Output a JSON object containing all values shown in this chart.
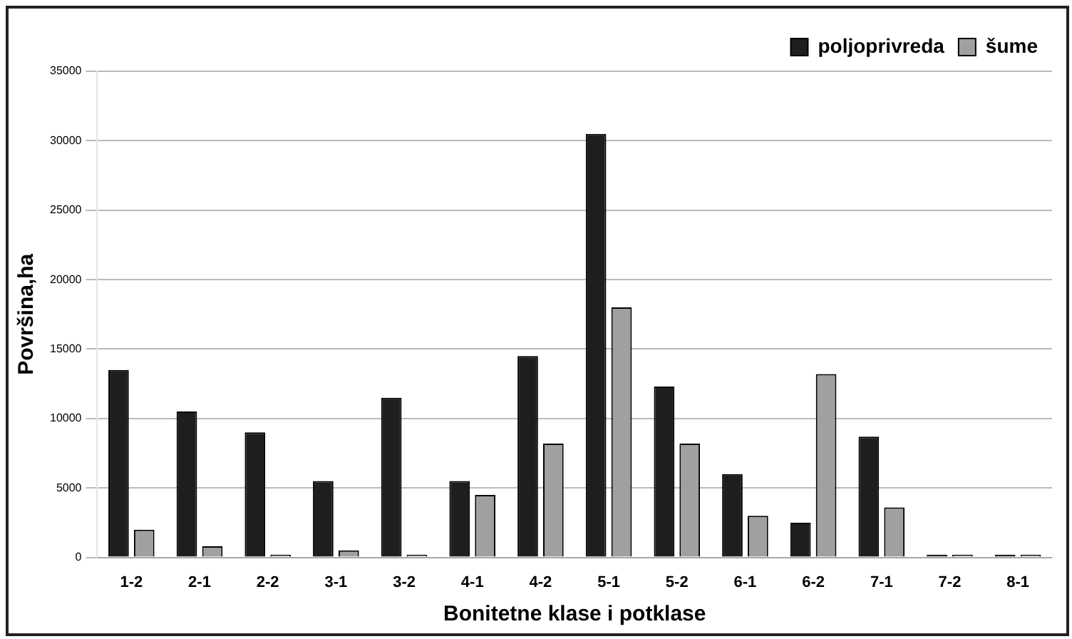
{
  "chart_data": {
    "type": "bar",
    "xlabel": "Bonitetne klase i potklase",
    "ylabel": "Površina,ha",
    "categories": [
      "1-2",
      "2-1",
      "2-2",
      "3-1",
      "3-2",
      "4-1",
      "4-2",
      "5-1",
      "5-2",
      "6-1",
      "6-2",
      "7-1",
      "7-2",
      "8-1"
    ],
    "series": [
      {
        "name": "poljoprivreda",
        "color": "#1e1e1e",
        "values": [
          13500,
          10500,
          9000,
          5500,
          11500,
          5500,
          14500,
          30500,
          12300,
          6000,
          2500,
          8700,
          200,
          200
        ]
      },
      {
        "name": "šume",
        "color": "#a0a0a0",
        "values": [
          2000,
          800,
          200,
          500,
          200,
          4500,
          8200,
          18000,
          8200,
          3000,
          13200,
          3600,
          200,
          200
        ]
      }
    ],
    "ylim": [
      0,
      35000
    ],
    "yticks": [
      0,
      5000,
      10000,
      15000,
      20000,
      25000,
      30000,
      35000
    ],
    "grid": "y",
    "legend": "top right"
  }
}
